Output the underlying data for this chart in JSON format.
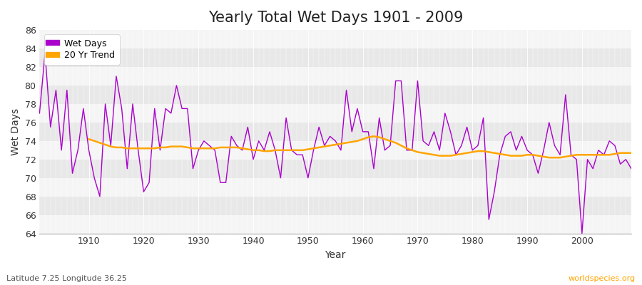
{
  "title": "Yearly Total Wet Days 1901 - 2009",
  "xlabel": "Year",
  "ylabel": "Wet Days",
  "subtitle": "Latitude 7.25 Longitude 36.25",
  "watermark": "worldspecies.org",
  "line_color": "#aa00cc",
  "trend_color": "#FFA500",
  "fig_bg_color": "#ffffff",
  "plot_bg_color": "#e8e8e8",
  "stripe_color": "#f5f5f5",
  "ylim": [
    64,
    86
  ],
  "xlim": [
    1901,
    2009
  ],
  "ytick_major": 2,
  "xtick_major": 10,
  "years": [
    1901,
    1902,
    1903,
    1904,
    1905,
    1906,
    1907,
    1908,
    1909,
    1910,
    1911,
    1912,
    1913,
    1914,
    1915,
    1916,
    1917,
    1918,
    1919,
    1920,
    1921,
    1922,
    1923,
    1924,
    1925,
    1926,
    1927,
    1928,
    1929,
    1930,
    1931,
    1932,
    1933,
    1934,
    1935,
    1936,
    1937,
    1938,
    1939,
    1940,
    1941,
    1942,
    1943,
    1944,
    1945,
    1946,
    1947,
    1948,
    1949,
    1950,
    1951,
    1952,
    1953,
    1954,
    1955,
    1956,
    1957,
    1958,
    1959,
    1960,
    1961,
    1962,
    1963,
    1964,
    1965,
    1966,
    1967,
    1968,
    1969,
    1970,
    1971,
    1972,
    1973,
    1974,
    1975,
    1976,
    1977,
    1978,
    1979,
    1980,
    1981,
    1982,
    1983,
    1984,
    1985,
    1986,
    1987,
    1988,
    1989,
    1990,
    1991,
    1992,
    1993,
    1994,
    1995,
    1996,
    1997,
    1998,
    1999,
    2000,
    2001,
    2002,
    2003,
    2004,
    2005,
    2006,
    2007,
    2008,
    2009
  ],
  "wet_days": [
    77.0,
    83.5,
    75.5,
    79.5,
    73.0,
    79.5,
    70.5,
    73.0,
    77.5,
    73.0,
    70.0,
    68.0,
    78.0,
    73.5,
    81.0,
    77.5,
    71.0,
    78.0,
    73.0,
    68.5,
    69.5,
    77.5,
    73.0,
    77.5,
    77.0,
    80.0,
    77.5,
    77.5,
    71.0,
    73.0,
    74.0,
    73.5,
    73.0,
    69.5,
    69.5,
    74.5,
    73.5,
    73.0,
    75.5,
    72.0,
    74.0,
    73.0,
    75.0,
    73.0,
    70.0,
    76.5,
    73.0,
    72.5,
    72.5,
    70.0,
    73.0,
    75.5,
    73.5,
    74.5,
    74.0,
    73.0,
    79.5,
    75.0,
    77.5,
    75.0,
    75.0,
    71.0,
    76.5,
    73.0,
    73.5,
    80.5,
    80.5,
    73.0,
    73.0,
    80.5,
    74.0,
    73.5,
    75.0,
    73.0,
    77.0,
    75.0,
    72.5,
    73.5,
    75.5,
    73.0,
    73.5,
    76.5,
    65.5,
    68.5,
    72.5,
    74.5,
    75.0,
    73.0,
    74.5,
    73.0,
    72.5,
    70.5,
    73.0,
    76.0,
    73.5,
    72.5,
    79.0,
    72.5,
    72.0,
    64.0,
    72.0,
    71.0,
    73.0,
    72.5,
    74.0,
    73.5,
    71.5,
    72.0,
    71.0
  ],
  "trend_years": [
    1910,
    1911,
    1912,
    1913,
    1914,
    1915,
    1916,
    1917,
    1918,
    1919,
    1920,
    1921,
    1922,
    1923,
    1924,
    1925,
    1926,
    1927,
    1928,
    1929,
    1930,
    1931,
    1932,
    1933,
    1934,
    1935,
    1936,
    1937,
    1938,
    1939,
    1940,
    1941,
    1942,
    1943,
    1944,
    1945,
    1946,
    1947,
    1948,
    1949,
    1950,
    1951,
    1952,
    1953,
    1954,
    1955,
    1956,
    1957,
    1958,
    1959,
    1960,
    1961,
    1962,
    1963,
    1964,
    1965,
    1966,
    1967,
    1968,
    1969,
    1970,
    1971,
    1972,
    1973,
    1974,
    1975,
    1976,
    1977,
    1978,
    1979,
    1980,
    1981,
    1982,
    1983,
    1984,
    1985,
    1986,
    1987,
    1988,
    1989,
    1990,
    1991,
    1992,
    1993,
    1994,
    1995,
    1996,
    1997,
    1998,
    1999,
    2000,
    2001,
    2002,
    2003,
    2004,
    2005,
    2006,
    2007,
    2008,
    2009
  ],
  "trend_vals": [
    74.2,
    74.0,
    73.8,
    73.6,
    73.4,
    73.3,
    73.3,
    73.2,
    73.2,
    73.2,
    73.2,
    73.2,
    73.2,
    73.3,
    73.3,
    73.4,
    73.4,
    73.4,
    73.3,
    73.2,
    73.2,
    73.2,
    73.2,
    73.2,
    73.3,
    73.3,
    73.3,
    73.3,
    73.2,
    73.1,
    73.0,
    73.0,
    72.9,
    72.9,
    73.0,
    73.0,
    73.0,
    73.0,
    73.0,
    73.0,
    73.1,
    73.2,
    73.3,
    73.4,
    73.5,
    73.6,
    73.7,
    73.8,
    73.9,
    74.0,
    74.2,
    74.4,
    74.5,
    74.4,
    74.2,
    74.0,
    73.8,
    73.5,
    73.2,
    73.0,
    72.8,
    72.7,
    72.6,
    72.5,
    72.4,
    72.4,
    72.4,
    72.5,
    72.6,
    72.7,
    72.8,
    72.9,
    72.9,
    72.8,
    72.7,
    72.6,
    72.5,
    72.4,
    72.4,
    72.4,
    72.5,
    72.5,
    72.4,
    72.3,
    72.2,
    72.2,
    72.2,
    72.3,
    72.4,
    72.5,
    72.5,
    72.5,
    72.5,
    72.5,
    72.5,
    72.5,
    72.6,
    72.7,
    72.7,
    72.7
  ]
}
